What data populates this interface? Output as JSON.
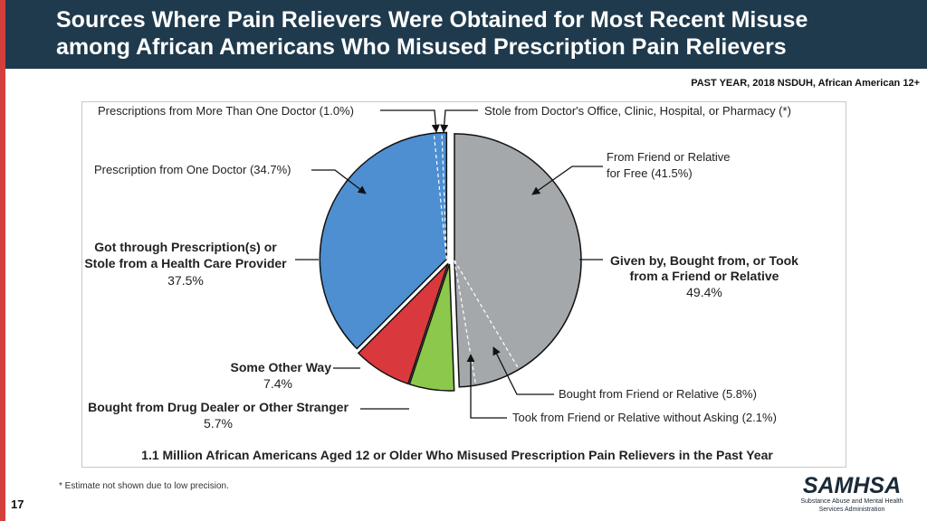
{
  "header": {
    "title_line1": "Sources Where Pain Relievers Were Obtained for Most Recent Misuse",
    "title_line2": "among African Americans Who Misused Prescription Pain Relievers"
  },
  "subtitle": "PAST YEAR, 2018 NSDUH, African American 12+",
  "footnote": "* Estimate not shown due to low precision.",
  "page_number": "17",
  "logo": {
    "name": "SAMHSA",
    "sub_line1": "Substance Abuse and Mental Health",
    "sub_line2": "Services Administration"
  },
  "colors": {
    "header_bg": "#1f3a4d",
    "accent_red": "#d33f3a",
    "gray": "#a5a8ab",
    "blue": "#4d8fd1",
    "red": "#d9393c",
    "green": "#8cc84b"
  },
  "chart_data": {
    "type": "pie",
    "title": "1.1 Million African Americans Aged 12 or Older Who Misused Prescription Pain Relievers in the Past Year",
    "slices": [
      {
        "id": "friend",
        "name": "Given by, Bought from, or Took from a Friend or Relative",
        "value": 49.4,
        "value_label": "49.4%",
        "color": "#a5a8ab"
      },
      {
        "id": "dealer",
        "name": "Bought from Drug Dealer or Other Stranger",
        "value": 5.7,
        "value_label": "5.7%",
        "color": "#8cc84b"
      },
      {
        "id": "other",
        "name": "Some Other Way",
        "value": 7.4,
        "value_label": "7.4%",
        "color": "#d9393c"
      },
      {
        "id": "provider",
        "name": "Got through Prescription(s) or Stole from a Health Care Provider",
        "value": 37.5,
        "value_label": "37.5%",
        "color": "#4d8fd1"
      }
    ],
    "sub_segments": [
      {
        "parent": "friend",
        "name": "From Friend or Relative for Free",
        "value": 41.5
      },
      {
        "parent": "friend",
        "name": "Bought from Friend or Relative",
        "value": 5.8
      },
      {
        "parent": "friend",
        "name": "Took from Friend or Relative without Asking",
        "value": 2.1
      },
      {
        "parent": "provider",
        "name": "Prescription from One Doctor",
        "value": 34.7
      },
      {
        "parent": "provider",
        "name": "Prescriptions from More Than One Doctor",
        "value": 1.0
      },
      {
        "parent": "provider",
        "name": "Stole from Doctor's Office, Clinic, Hospital, or Pharmacy",
        "value": null
      }
    ],
    "labels": {
      "multi_doctor": "Prescriptions from More Than One Doctor (1.0%)",
      "stole": "Stole from Doctor's Office, Clinic, Hospital, or Pharmacy (*)",
      "one_doctor": "Prescription from One Doctor (34.7%)",
      "free_line1": "From Friend or Relative",
      "free_line2": "for Free (41.5%)",
      "provider_line1": "Got through Prescription(s) or",
      "provider_line2": "Stole from a Health Care Provider",
      "provider_pct": "37.5%",
      "friend_line1": "Given by, Bought from, or Took",
      "friend_line2": "from a Friend or Relative",
      "friend_pct": "49.4%",
      "other_name": "Some Other Way",
      "other_pct": "7.4%",
      "dealer_name": "Bought from Drug Dealer or Other Stranger",
      "dealer_pct": "5.7%",
      "bought": "Bought from Friend or Relative (5.8%)",
      "took": "Took from Friend or Relative without Asking (2.1%)"
    }
  }
}
